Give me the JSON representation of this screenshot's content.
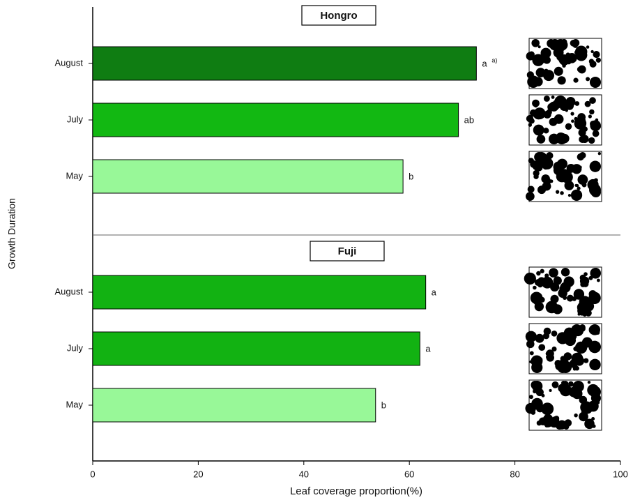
{
  "chart_data": [
    {
      "type": "bar",
      "orientation": "horizontal",
      "title": "Hongro",
      "categories": [
        "August",
        "July",
        "May"
      ],
      "values": [
        72.7,
        69.3,
        58.8
      ],
      "colors": [
        "#0f7d12",
        "#12b812",
        "#98f898"
      ],
      "annotations": [
        "a",
        "ab",
        "b"
      ],
      "footnote_marker": "a)",
      "xlim": [
        0,
        100
      ]
    },
    {
      "type": "bar",
      "orientation": "horizontal",
      "title": "Fuji",
      "categories": [
        "August",
        "July",
        "May"
      ],
      "values": [
        63.1,
        62.0,
        53.6
      ],
      "colors": [
        "#12b212",
        "#12b212",
        "#98f898"
      ],
      "annotations": [
        "a",
        "a",
        "b"
      ],
      "xlim": [
        0,
        100
      ],
      "xticks": [
        0,
        20,
        40,
        60,
        80,
        100
      ],
      "xlabel": "Leaf coverage proportion(%)",
      "ylabel": "Growth Duration"
    }
  ]
}
